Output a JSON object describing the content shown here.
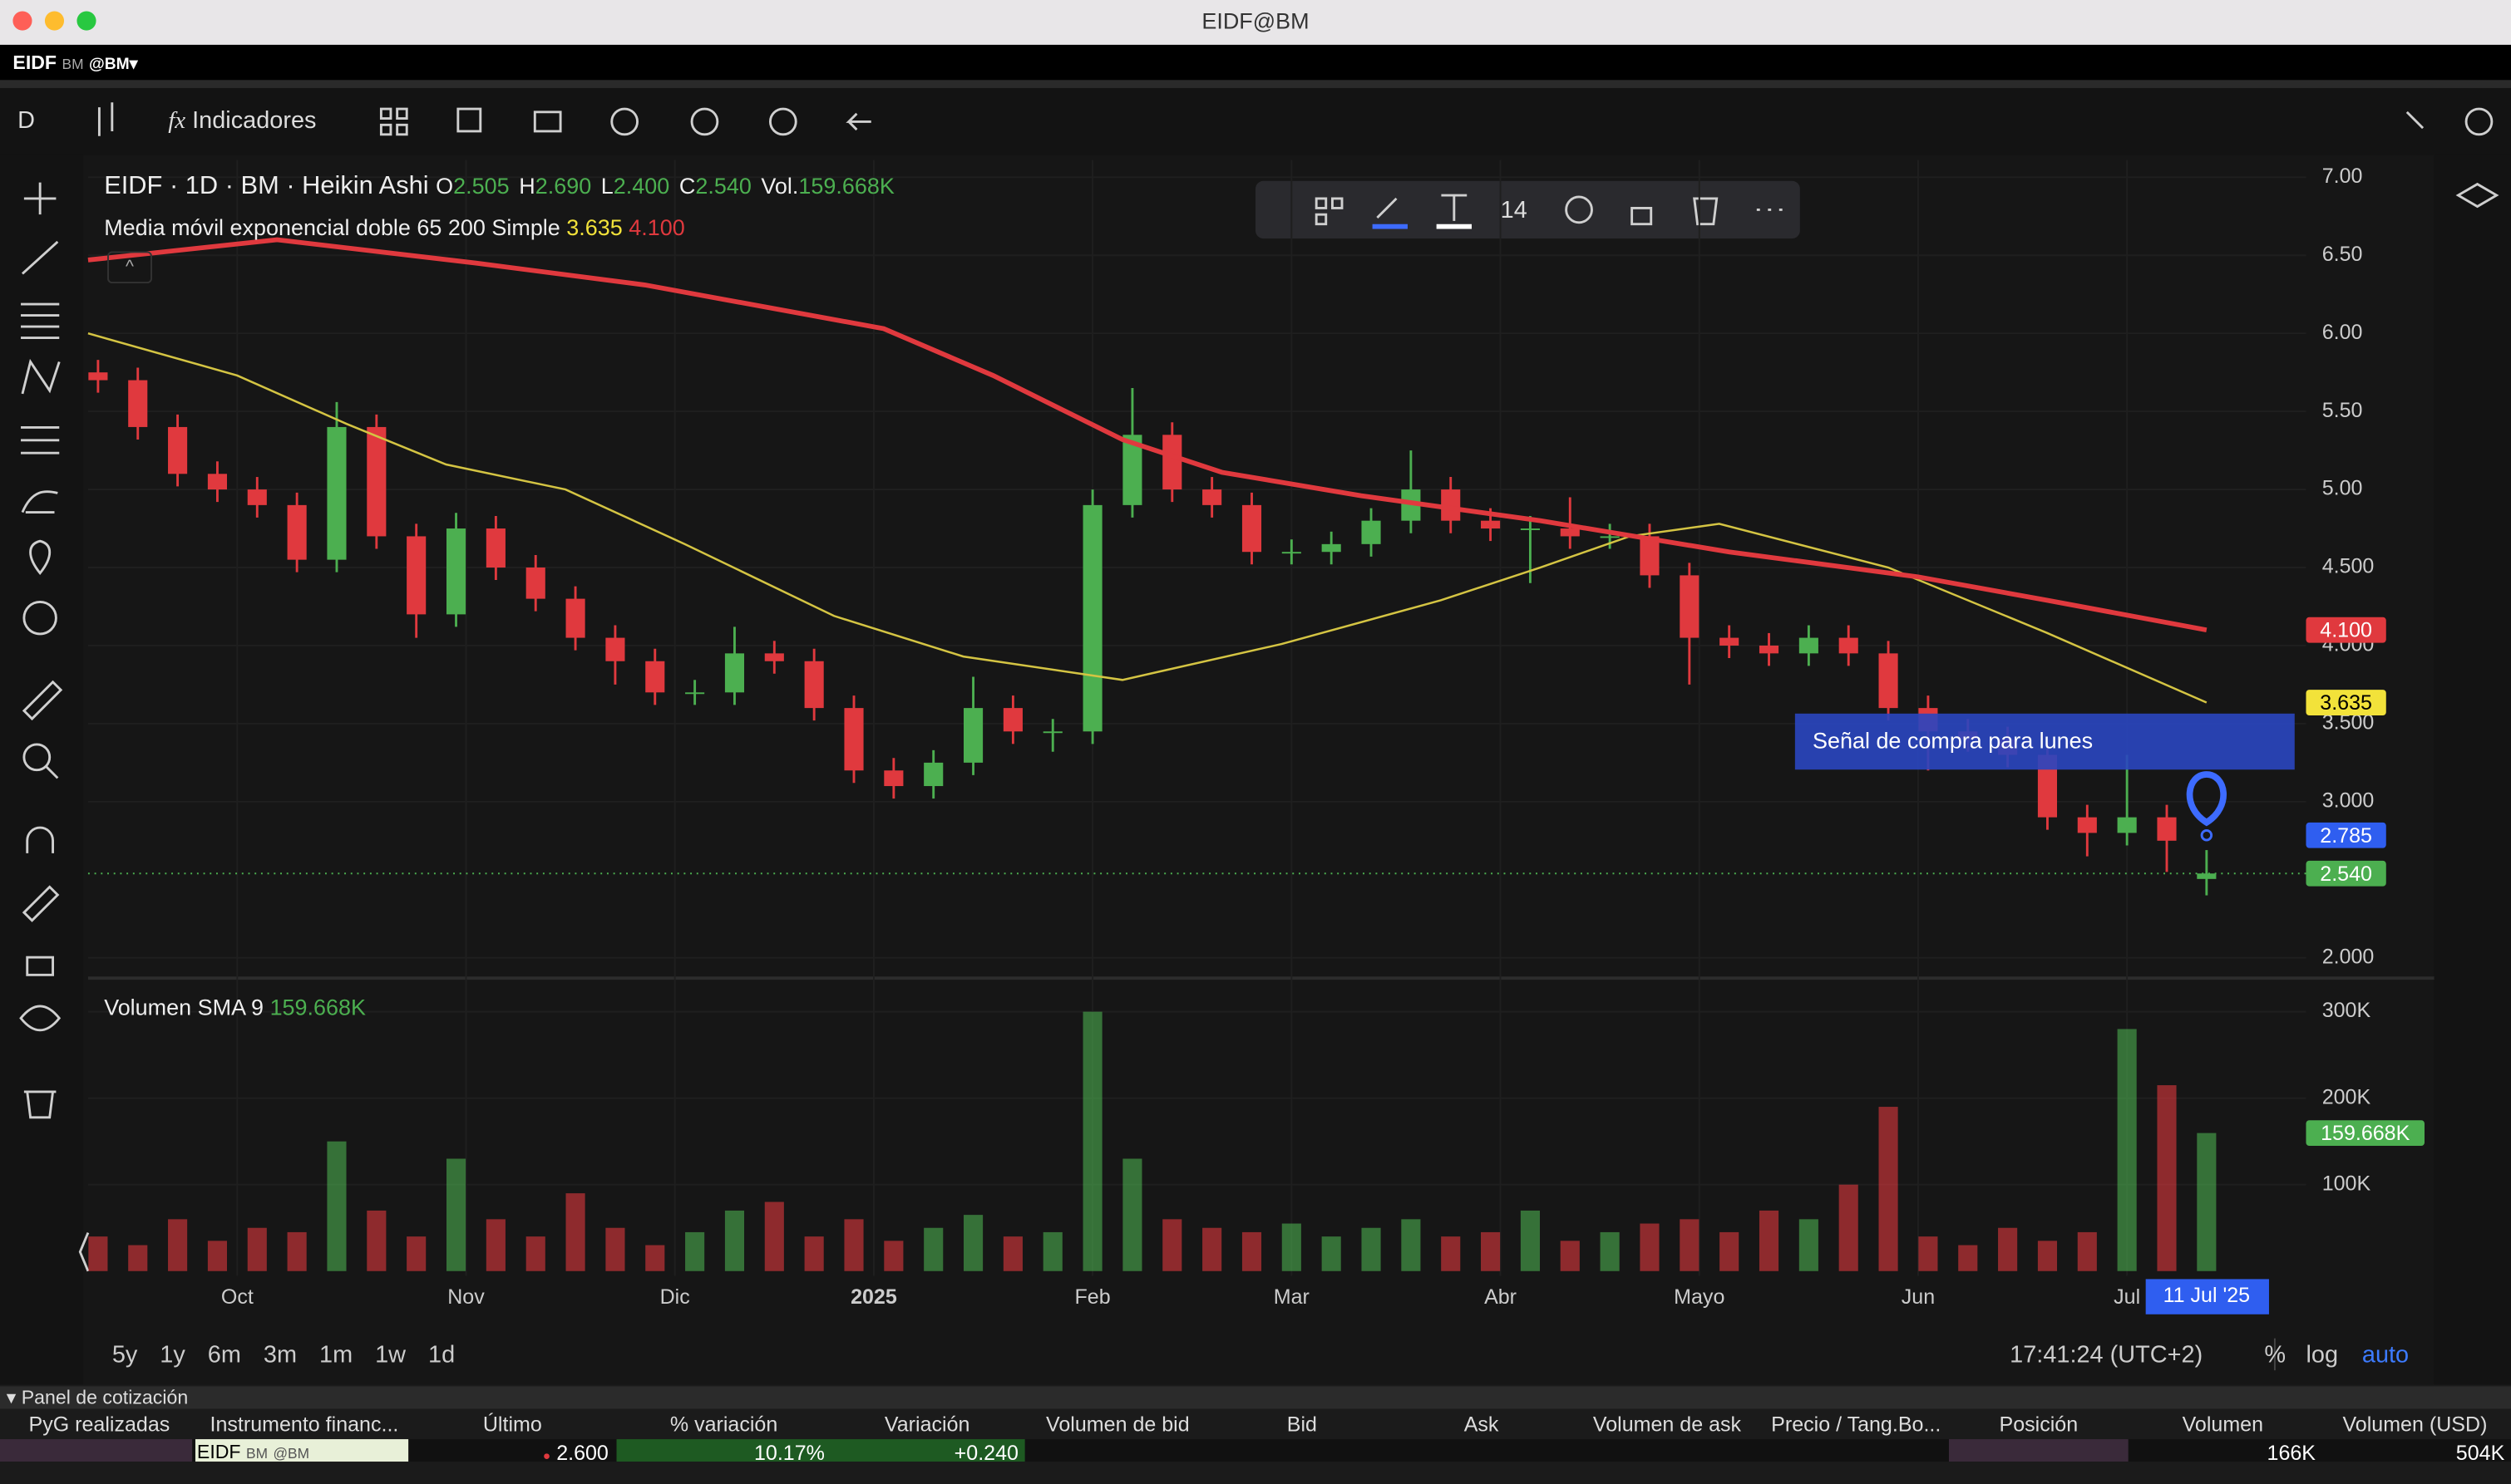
{
  "window": {
    "title": "EIDF@BM",
    "symbol": "EIDF",
    "symbol_exchange": "BM",
    "symbol_account": "@BM▾"
  },
  "toolbar": {
    "interval": "D",
    "indicators": "Indicadores",
    "font_size": "14"
  },
  "legend": {
    "title": "EIDF · 1D · BM · Heikin Ashi",
    "ohlc": [
      {
        "key": "O",
        "value": "2.505"
      },
      {
        "key": "H",
        "value": "2.690"
      },
      {
        "key": "L",
        "value": "2.400"
      },
      {
        "key": "C",
        "value": "2.540"
      },
      {
        "key": "Vol.",
        "value": "159.668K"
      }
    ],
    "indicator": "Media móvil exponencial doble 65 200 Simple",
    "indicator_values": [
      "3.635",
      "4.100"
    ]
  },
  "chart_data": [
    {
      "type": "candlestick",
      "up_color": "#4caf50",
      "down_color": "#e0393e",
      "grid": true,
      "x": [
        1,
        5,
        9,
        13,
        17,
        21,
        25,
        29,
        33,
        37,
        41,
        45,
        49,
        53,
        57,
        61,
        65,
        69,
        73,
        77,
        81,
        85,
        89,
        93,
        97,
        101,
        105,
        109,
        113,
        117,
        121,
        125,
        129,
        133,
        137,
        141,
        145,
        149,
        153,
        157,
        161,
        165,
        169,
        173,
        177,
        181,
        185,
        189,
        193,
        197,
        201,
        205,
        209,
        213
      ],
      "open": [
        5.75,
        5.7,
        5.4,
        5.1,
        5.0,
        4.9,
        4.55,
        5.4,
        4.7,
        4.2,
        4.75,
        4.5,
        4.3,
        4.05,
        3.9,
        3.7,
        3.7,
        3.95,
        3.9,
        3.6,
        3.2,
        3.1,
        3.25,
        3.6,
        3.45,
        3.45,
        4.9,
        5.35,
        5.0,
        4.9,
        4.6,
        4.6,
        4.65,
        4.8,
        5.0,
        4.8,
        4.75,
        4.75,
        4.7,
        4.7,
        4.45,
        4.05,
        4.0,
        3.95,
        4.05,
        3.95,
        3.6,
        3.45,
        3.4,
        3.3,
        2.9,
        2.8,
        2.9,
        2.505
      ],
      "high": [
        5.83,
        5.78,
        5.48,
        5.18,
        5.08,
        4.98,
        5.56,
        5.48,
        4.78,
        4.85,
        4.83,
        4.58,
        4.38,
        4.13,
        3.98,
        3.78,
        4.12,
        4.03,
        3.98,
        3.68,
        3.28,
        3.33,
        3.8,
        3.68,
        3.53,
        5.0,
        5.65,
        5.43,
        5.08,
        4.98,
        4.68,
        4.73,
        4.88,
        5.25,
        5.08,
        4.88,
        4.83,
        4.95,
        4.78,
        4.78,
        4.53,
        4.13,
        4.08,
        4.13,
        4.13,
        4.03,
        3.68,
        3.53,
        3.48,
        3.38,
        2.98,
        3.3,
        2.98,
        2.69
      ],
      "low": [
        5.62,
        5.32,
        5.02,
        4.92,
        4.82,
        4.47,
        4.47,
        4.62,
        4.05,
        4.12,
        4.42,
        4.22,
        3.97,
        3.75,
        3.62,
        3.62,
        3.62,
        3.82,
        3.52,
        3.12,
        3.02,
        3.02,
        3.17,
        3.37,
        3.32,
        3.37,
        4.82,
        4.92,
        4.82,
        4.52,
        4.52,
        4.52,
        4.57,
        4.72,
        4.72,
        4.67,
        4.4,
        4.62,
        4.62,
        4.37,
        3.75,
        3.92,
        3.87,
        3.87,
        3.87,
        3.52,
        3.2,
        3.32,
        3.22,
        2.82,
        2.65,
        2.72,
        2.55,
        2.4
      ],
      "close": [
        5.7,
        5.4,
        5.1,
        5.0,
        4.9,
        4.55,
        5.4,
        4.7,
        4.2,
        4.75,
        4.5,
        4.3,
        4.05,
        3.9,
        3.7,
        3.7,
        3.95,
        3.9,
        3.6,
        3.2,
        3.1,
        3.25,
        3.6,
        3.45,
        3.45,
        4.9,
        5.35,
        5.0,
        4.9,
        4.6,
        4.6,
        4.65,
        4.8,
        5.0,
        4.8,
        4.75,
        4.75,
        4.7,
        4.7,
        4.45,
        4.05,
        4.0,
        3.95,
        4.05,
        3.95,
        3.6,
        3.45,
        3.4,
        3.3,
        2.9,
        2.8,
        2.9,
        2.75,
        2.54
      ],
      "lines": [
        {
          "color": "#d4c443",
          "x": [
            0,
            15,
            26,
            36,
            48,
            60,
            75,
            88,
            104,
            120,
            136,
            146,
            155,
            164,
            181,
            197,
            213
          ],
          "values": [
            6.0,
            5.73,
            5.42,
            5.16,
            5.0,
            4.65,
            4.19,
            3.93,
            3.78,
            4.01,
            4.29,
            4.5,
            4.7,
            4.78,
            4.5,
            4.08,
            3.635
          ]
        },
        {
          "color": "#e0393e",
          "x": [
            0,
            19,
            39,
            56,
            80,
            91,
            104,
            114,
            128,
            146,
            165,
            184,
            197,
            213
          ],
          "values": [
            6.47,
            6.6,
            6.45,
            6.31,
            6.03,
            5.73,
            5.32,
            5.11,
            4.96,
            4.8,
            4.6,
            4.44,
            4.29,
            4.1
          ]
        }
      ],
      "xlim": [
        0,
        223
      ],
      "ylim": [
        1.88,
        7.11
      ],
      "yticks": [
        {
          "value": 7,
          "label": "7.00"
        },
        {
          "value": 6.5,
          "label": "6.50"
        },
        {
          "value": 6,
          "label": "6.00"
        },
        {
          "value": 5.5,
          "label": "5.50"
        },
        {
          "value": 5,
          "label": "5.00"
        },
        {
          "value": 4.5,
          "label": "4.500"
        },
        {
          "value": 4,
          "label": "4.000"
        },
        {
          "value": 3.5,
          "label": "3.500"
        },
        {
          "value": 3,
          "label": "3.000"
        },
        {
          "value": 2,
          "label": "2.000"
        }
      ],
      "price_tags": [
        {
          "value": 4.1,
          "label": "4.100",
          "color": "#e0393e"
        },
        {
          "value": 3.635,
          "label": "3.635",
          "color": "#f2e23a"
        },
        {
          "value": 2.785,
          "label": "2.785",
          "color": "#2f5ef0"
        },
        {
          "value": 2.54,
          "label": "2.540",
          "color": "#4caf50"
        }
      ],
      "annotation": {
        "text": "Señal de compra para lunes",
        "x": 213,
        "y": 2.785
      }
    },
    {
      "type": "bar",
      "title": "Volumen SMA 9",
      "title_value": "159.668K",
      "x": [
        1,
        5,
        9,
        13,
        17,
        21,
        25,
        29,
        33,
        37,
        41,
        45,
        49,
        53,
        57,
        61,
        65,
        69,
        73,
        77,
        81,
        85,
        89,
        93,
        97,
        101,
        105,
        109,
        113,
        117,
        121,
        125,
        129,
        133,
        137,
        141,
        145,
        149,
        153,
        157,
        161,
        165,
        169,
        173,
        177,
        181,
        185,
        189,
        193,
        197,
        201,
        205,
        209,
        213
      ],
      "values": [
        40000,
        30000,
        60000,
        35000,
        50000,
        45000,
        150000,
        70000,
        40000,
        130000,
        60000,
        40000,
        90000,
        50000,
        30000,
        45000,
        70000,
        80000,
        40000,
        60000,
        35000,
        50000,
        65000,
        40000,
        45000,
        300000,
        130000,
        60000,
        50000,
        45000,
        55000,
        40000,
        50000,
        60000,
        40000,
        45000,
        70000,
        35000,
        45000,
        55000,
        60000,
        45000,
        70000,
        60000,
        100000,
        190000,
        40000,
        30000,
        50000,
        35000,
        45000,
        280000,
        215000,
        159668
      ],
      "xlim": [
        0,
        223
      ],
      "ylim": [
        0,
        337000
      ],
      "yticks": [
        {
          "value": 100000,
          "label": "100K"
        },
        {
          "value": 200000,
          "label": "200K"
        },
        {
          "value": 300000,
          "label": "300K"
        }
      ],
      "value_tag": {
        "value": 159668,
        "label": "159.668K",
        "color": "#4caf50"
      },
      "xticks": [
        {
          "value": 15,
          "label": "Oct"
        },
        {
          "value": 38,
          "label": "Nov"
        },
        {
          "value": 59,
          "label": "Dic"
        },
        {
          "value": 79,
          "label": "2025"
        },
        {
          "value": 101,
          "label": "Feb"
        },
        {
          "value": 121,
          "label": "Mar"
        },
        {
          "value": 142,
          "label": "Abr"
        },
        {
          "value": 162,
          "label": "Mayo"
        },
        {
          "value": 184,
          "label": "Jun"
        },
        {
          "value": 205,
          "label": "Jul"
        }
      ],
      "cursor": {
        "value": 213,
        "label": "11 Jul '25"
      }
    }
  ],
  "ranges": [
    "5y",
    "1y",
    "6m",
    "3m",
    "1m",
    "1w",
    "1d"
  ],
  "status": {
    "time": "17:41:24 (UTC+2)",
    "percent": "%",
    "log": "log",
    "auto": "auto"
  },
  "panel": {
    "title": "Panel de cotización",
    "columns": [
      "PyG realizadas",
      "Instrumento financ...",
      "Último",
      "% variación",
      "Variación",
      "Volumen de bid",
      "Bid",
      "Ask",
      "Volumen de ask",
      "Precio / Tang.Bo...",
      "Posición",
      "Volumen",
      "Volumen (USD)"
    ],
    "row": {
      "instrument": "EIDF",
      "exchange": "BM",
      "account": "@BM",
      "last": "2.600",
      "change_pct": "10.17%",
      "change": "+0.240",
      "volume": "166K",
      "volume_usd": "504K"
    }
  }
}
